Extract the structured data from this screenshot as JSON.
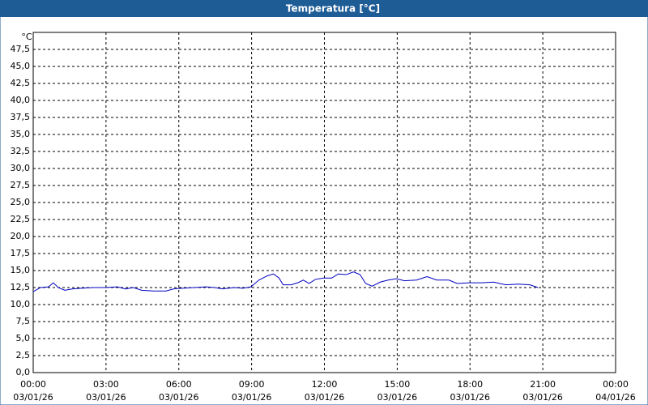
{
  "chart_data": {
    "type": "line",
    "title": "Temperatura [°C]",
    "y_label": "°C",
    "x": [
      0,
      0.3,
      0.63,
      0.83,
      1.03,
      1.3,
      1.63,
      1.97,
      2.47,
      2.97,
      3.47,
      3.8,
      4.13,
      4.47,
      4.97,
      5.47,
      5.8,
      6.13,
      6.63,
      7.13,
      7.47,
      7.8,
      8.3,
      8.63,
      8.97,
      9.3,
      9.63,
      9.9,
      10.13,
      10.3,
      10.63,
      10.9,
      11.13,
      11.37,
      11.63,
      11.97,
      12.3,
      12.57,
      12.9,
      13.2,
      13.47,
      13.7,
      13.97,
      14.3,
      14.63,
      14.97,
      15.3,
      15.8,
      16.23,
      16.63,
      17.13,
      17.47,
      17.97,
      18.47,
      18.97,
      19.47,
      19.97,
      20.47,
      20.8
    ],
    "series": [
      {
        "color": "#0000c0",
        "values": [
          11.9,
          12.5,
          12.6,
          13.2,
          12.5,
          12.1,
          12.3,
          12.4,
          12.5,
          12.5,
          12.6,
          12.3,
          12.5,
          12.1,
          12.0,
          12.0,
          12.3,
          12.4,
          12.5,
          12.6,
          12.5,
          12.3,
          12.5,
          12.4,
          12.6,
          13.6,
          14.2,
          14.5,
          13.9,
          12.9,
          12.9,
          13.2,
          13.6,
          13.1,
          13.7,
          13.9,
          13.9,
          14.5,
          14.4,
          14.8,
          14.4,
          13.1,
          12.7,
          13.3,
          13.6,
          13.8,
          13.5,
          13.6,
          14.1,
          13.6,
          13.6,
          13.1,
          13.2,
          13.2,
          13.3,
          12.9,
          13.0,
          12.9,
          12.5
        ]
      }
    ],
    "xlim": [
      0,
      24
    ],
    "ylim": [
      0,
      50
    ],
    "xticks": [
      {
        "value": 0,
        "label": "00:00"
      },
      {
        "value": 3,
        "label": "03:00"
      },
      {
        "value": 6,
        "label": "06:00"
      },
      {
        "value": 9,
        "label": "09:00"
      },
      {
        "value": 12,
        "label": "12:00"
      },
      {
        "value": 15,
        "label": "15:00"
      },
      {
        "value": 18,
        "label": "18:00"
      },
      {
        "value": 21,
        "label": "21:00"
      },
      {
        "value": 24,
        "label": "00:00"
      }
    ],
    "xtick_dates": [
      "03/01/26",
      "03/01/26",
      "03/01/26",
      "03/01/26",
      "03/01/26",
      "03/01/26",
      "03/01/26",
      "03/01/26",
      "04/01/26"
    ],
    "yticks": [
      {
        "value": 0,
        "label": "0,0"
      },
      {
        "value": 2.5,
        "label": "2,5"
      },
      {
        "value": 5,
        "label": "5,0"
      },
      {
        "value": 7.5,
        "label": "7,5"
      },
      {
        "value": 10,
        "label": "10,0"
      },
      {
        "value": 12.5,
        "label": "12,5"
      },
      {
        "value": 15,
        "label": "15,0"
      },
      {
        "value": 17.5,
        "label": "17,5"
      },
      {
        "value": 20,
        "label": "20,0"
      },
      {
        "value": 22.5,
        "label": "22,5"
      },
      {
        "value": 25,
        "label": "25,0"
      },
      {
        "value": 27.5,
        "label": "27,5"
      },
      {
        "value": 30,
        "label": "30,0"
      },
      {
        "value": 32.5,
        "label": "32,5"
      },
      {
        "value": 35,
        "label": "35,0"
      },
      {
        "value": 37.5,
        "label": "37,5"
      },
      {
        "value": 40,
        "label": "40,0"
      },
      {
        "value": 42.5,
        "label": "42,5"
      },
      {
        "value": 45,
        "label": "45,0"
      },
      {
        "value": 47.5,
        "label": "47,5"
      }
    ],
    "grid": true
  }
}
